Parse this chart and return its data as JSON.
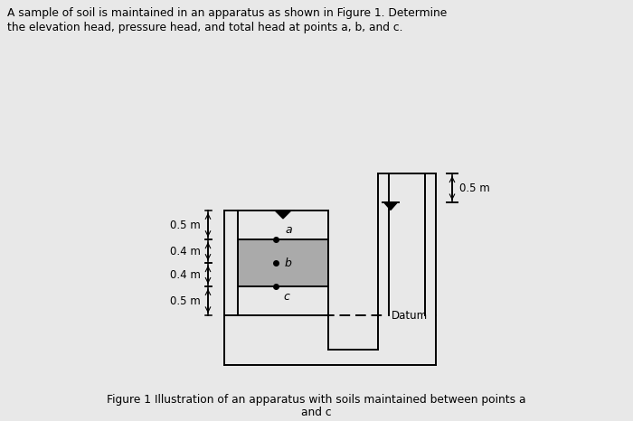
{
  "title_line1": "A sample of soil is maintained in an apparatus as shown in Figure 1. Determine",
  "title_line2": "the elevation head, pressure head, and total head at points a, b, and c.",
  "caption_line1": "Figure 1 Illustration of an apparatus with soils maintained between points a",
  "caption_line2": "and c",
  "bg_color": "#ebebeb",
  "soil_color": "#aaaaaa",
  "label_05m_left_top": "0.5 m",
  "label_04m_top": "0.4 m",
  "label_04m_bot": "0.4 m",
  "label_05m_left_bot": "0.5 m",
  "label_05m_right": "0.5 m",
  "point_a": "a",
  "point_b": "b",
  "point_c": "c",
  "datum_label": "Datum",
  "lw": 1.4,
  "fig_bg": "#e8e8e8"
}
